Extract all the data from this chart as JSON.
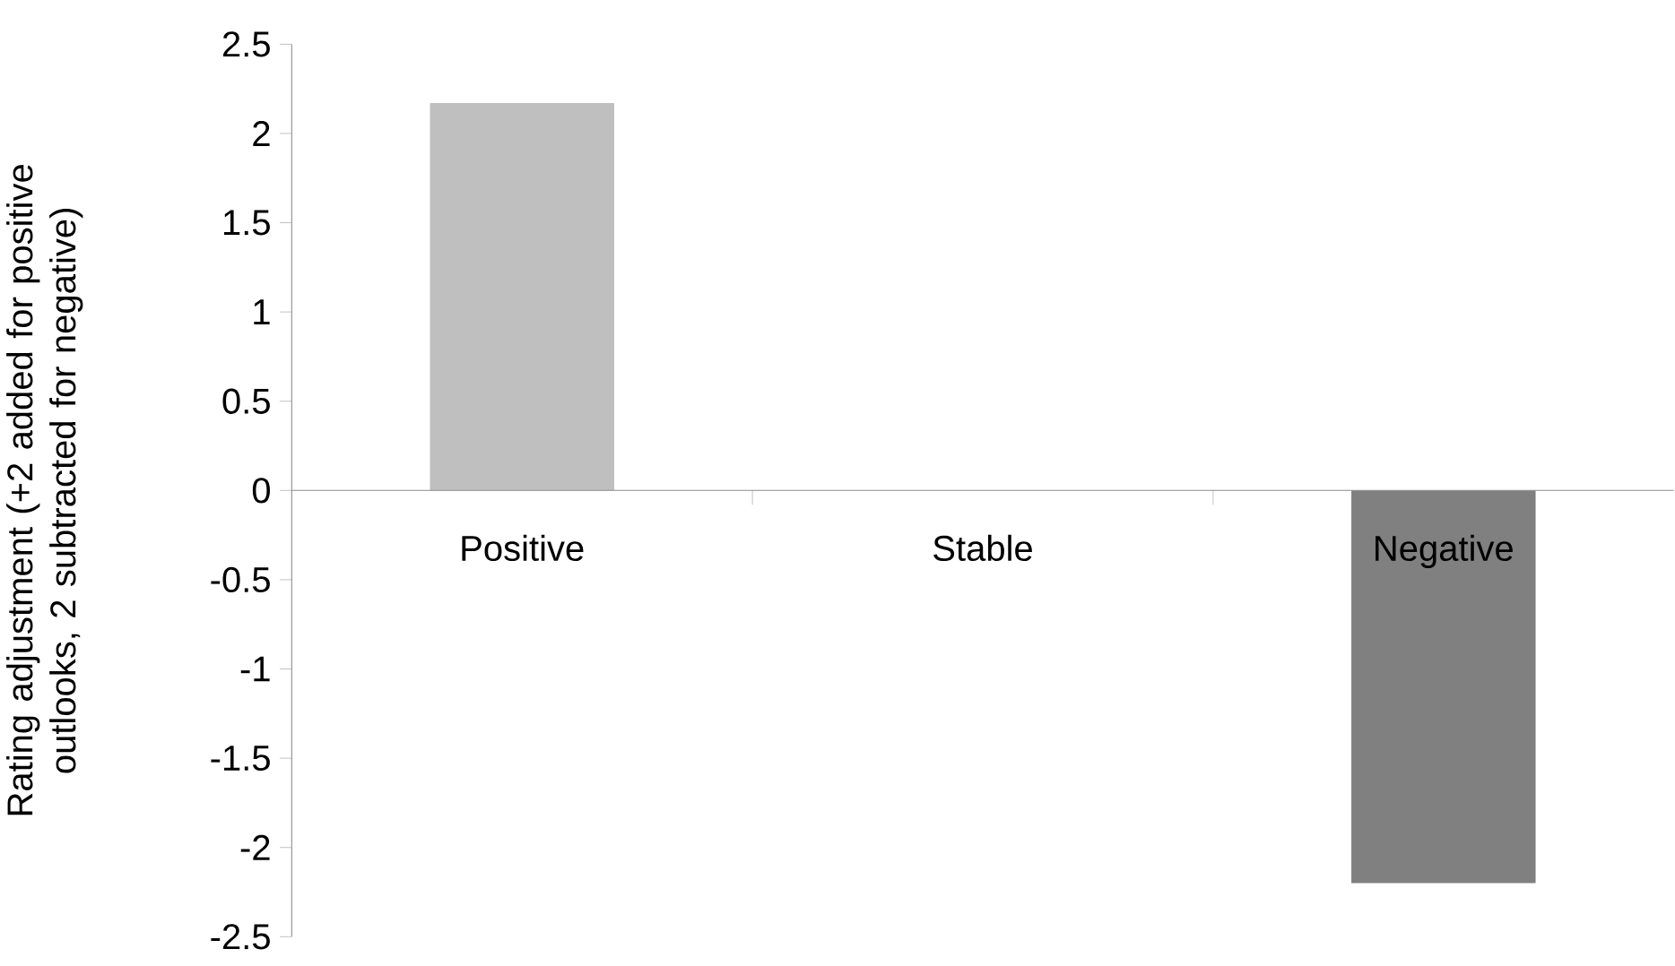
{
  "chart_data": {
    "type": "bar",
    "ylabel": "Rating adjustment (+2 added for positive outlooks, 2 subtracted for negative)",
    "categories": [
      "Positive",
      "Stable",
      "Negative"
    ],
    "values": [
      2.17,
      0,
      -2.2
    ],
    "colors": [
      "#bfbfbf",
      "#bfbfbf",
      "#808080"
    ],
    "ylim": [
      -2.5,
      2.5
    ],
    "yticks": [
      2.5,
      2,
      1.5,
      1,
      0.5,
      0,
      -0.5,
      -1,
      -1.5,
      -2,
      -2.5
    ]
  }
}
